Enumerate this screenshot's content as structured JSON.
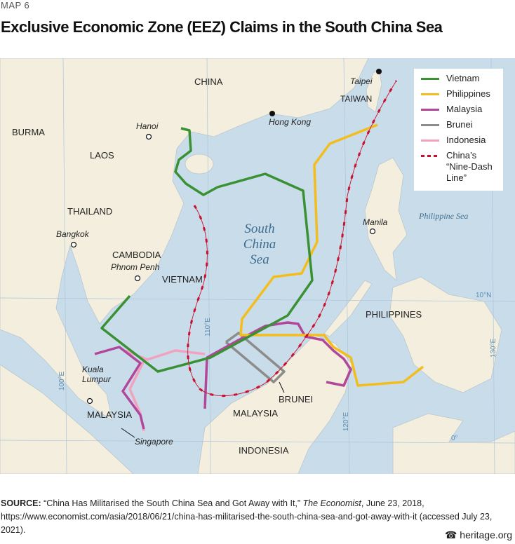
{
  "header": {
    "kicker": "MAP 6",
    "title": "Exclusive Economic Zone (EEZ) Claims in the South China Sea"
  },
  "map": {
    "countries": [
      "CHINA",
      "BURMA",
      "LAOS",
      "THAILAND",
      "CAMBODIA",
      "VIETNAM",
      "TAIWAN",
      "PHILIPPINES",
      "BRUNEI",
      "MALAYSIA",
      "MALAYSIA",
      "INDONESIA"
    ],
    "cities": [
      "Hanoi",
      "Hong Kong",
      "Taipei",
      "Bangkok",
      "Phnom Penh",
      "Manila",
      "Kuala Lumpur",
      "Singapore"
    ],
    "sea_name": "South China Sea",
    "ocean_name": "Philippine Sea",
    "graticule": [
      "110°E",
      "120°E",
      "130°E",
      "100°E",
      "10°N",
      "0°"
    ],
    "colors": {
      "land": "#f3eedd",
      "water": "#c9dcea",
      "vietnam": "#3a9134",
      "philippines": "#f2bd1d",
      "malaysia": "#b1479b",
      "brunei": "#8c8c8c",
      "indonesia": "#f2a2c0",
      "nine_dash": "#c8102e"
    }
  },
  "legend": [
    {
      "label": "Vietnam",
      "color": "#3a9134"
    },
    {
      "label": "Philippines",
      "color": "#f2bd1d"
    },
    {
      "label": "Malaysia",
      "color": "#b1479b"
    },
    {
      "label": "Brunei",
      "color": "#8c8c8c"
    },
    {
      "label": "Indonesia",
      "color": "#f2a2c0"
    },
    {
      "label": "China’s “Nine-Dash Line”",
      "color": "#c8102e",
      "style": "dashed"
    }
  ],
  "source": {
    "label": "SOURCE:",
    "text1": " “China Has Militarised the South China Sea and Got Away with It,” ",
    "publication": "The Economist",
    "text2": ", June 23, 2018, https://www.economist.com/asia/2018/06/21/china-has-militarised-the-south-china-sea-and-got-away-with-it (accessed July 23, 2021)."
  },
  "footer": {
    "logo_text": "heritage.org"
  }
}
